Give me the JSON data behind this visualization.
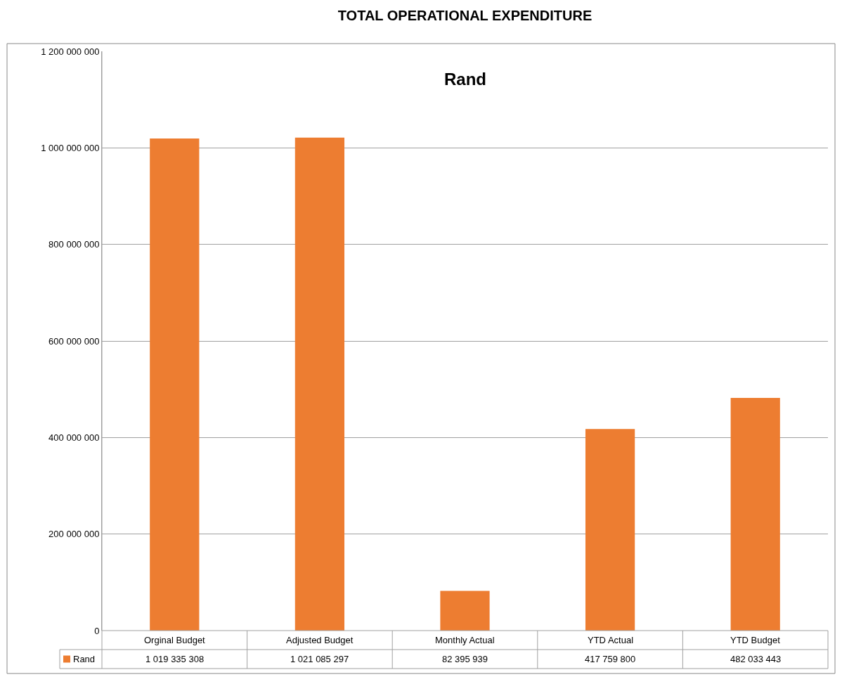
{
  "chart_data": {
    "type": "bar",
    "title": "TOTAL OPERATIONAL EXPENDITURE",
    "subtitle": "Rand",
    "categories": [
      "Orginal Budget",
      "Adjusted Budget",
      "Monthly Actual",
      "YTD Actual",
      "YTD Budget"
    ],
    "series": [
      {
        "name": "Rand",
        "color": "#ed7d31",
        "values": [
          1019335308,
          1021085297,
          82395939,
          417759800,
          482033443
        ],
        "value_labels": [
          "1 019 335 308",
          "1 021 085 297",
          "82 395 939",
          "417 759 800",
          "482 033 443"
        ]
      }
    ],
    "ylim": [
      0,
      1200000000
    ],
    "yticks": [
      {
        "value": 0,
        "label": "0"
      },
      {
        "value": 200000000,
        "label": "200 000 000"
      },
      {
        "value": 400000000,
        "label": "400 000 000"
      },
      {
        "value": 600000000,
        "label": "600 000 000"
      },
      {
        "value": 800000000,
        "label": "800 000 000"
      },
      {
        "value": 1000000000,
        "label": "1 000 000 000"
      },
      {
        "value": 1200000000,
        "label": "1 200 000 000"
      }
    ],
    "grid": "y",
    "legend": "bottom"
  }
}
